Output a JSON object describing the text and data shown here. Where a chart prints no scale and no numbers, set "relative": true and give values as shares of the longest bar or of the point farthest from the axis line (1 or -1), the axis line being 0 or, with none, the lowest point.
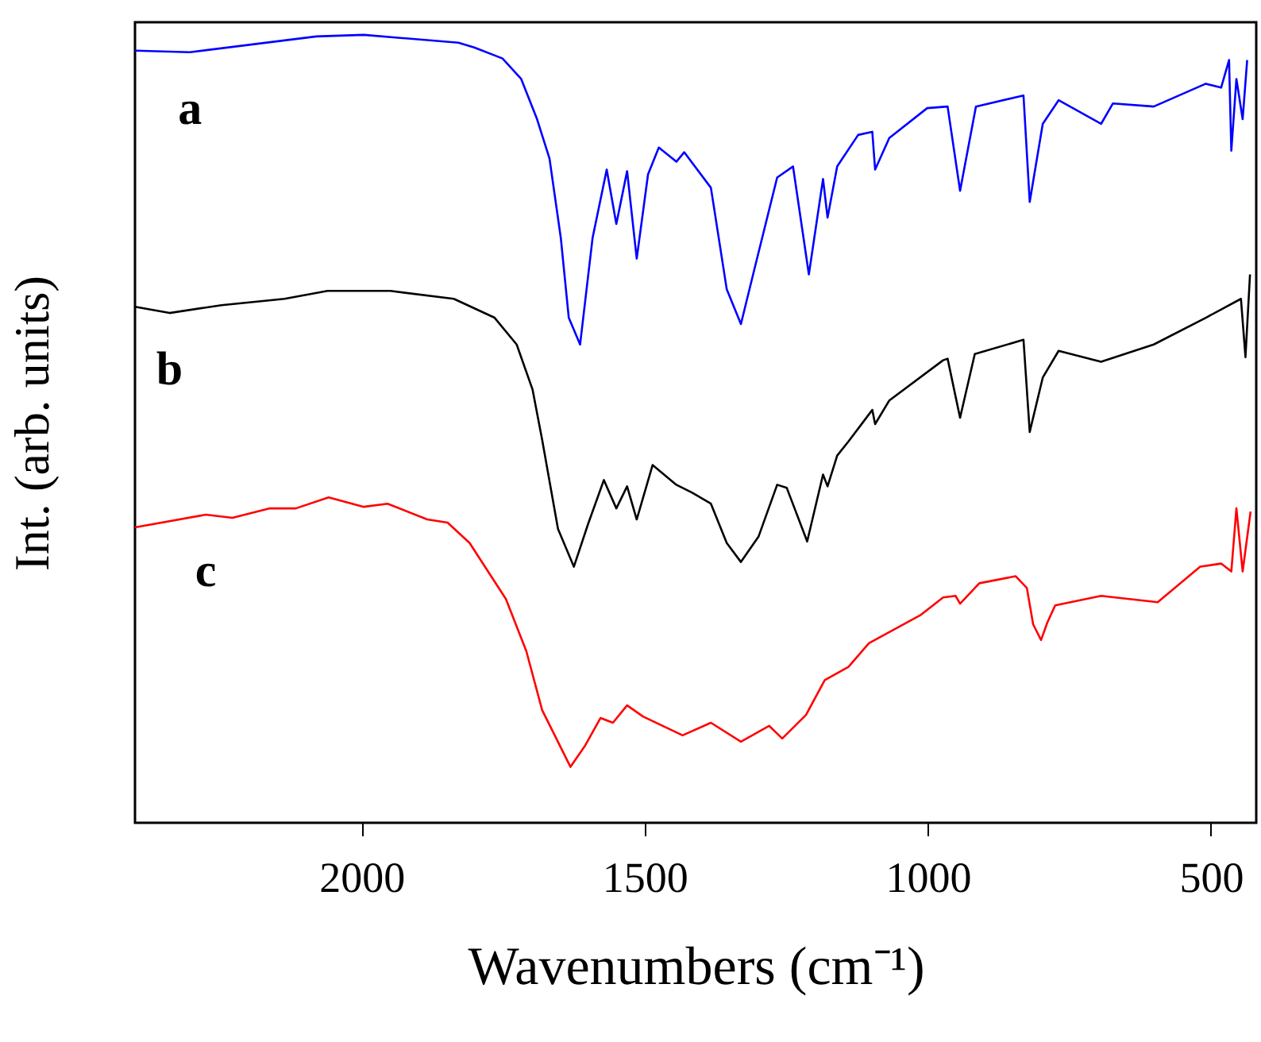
{
  "chart_data": {
    "type": "line",
    "relative": true,
    "xlabel": "Wavenumbers (cm⁻¹)",
    "ylabel": "Int. (arb. units)",
    "xlim": [
      2400,
      420
    ],
    "xticks": [
      2000,
      1500,
      1000,
      500
    ],
    "tick_labels": "x",
    "marker": "none",
    "line_style": "solid",
    "series": [
      {
        "name": "a",
        "color": "#0000ff",
        "x": [
          2400,
          2303,
          2080,
          1996,
          1829,
          1801,
          1751,
          1718,
          1690,
          1668,
          1648,
          1634,
          1614,
          1592,
          1567,
          1550,
          1531,
          1514,
          1494,
          1475,
          1444,
          1430,
          1383,
          1355,
          1330,
          1305,
          1266,
          1238,
          1210,
          1185,
          1177,
          1160,
          1123,
          1098,
          1093,
          1068,
          1001,
          965,
          943,
          915,
          831,
          820,
          797,
          769,
          694,
          673,
          601,
          509,
          482,
          468,
          464,
          455,
          444,
          436
        ],
        "values": [
          0.98,
          0.978,
          0.998,
          1.0,
          0.99,
          0.984,
          0.97,
          0.944,
          0.893,
          0.843,
          0.742,
          0.641,
          0.607,
          0.742,
          0.829,
          0.76,
          0.827,
          0.716,
          0.823,
          0.857,
          0.839,
          0.851,
          0.806,
          0.677,
          0.633,
          0.706,
          0.819,
          0.833,
          0.696,
          0.817,
          0.768,
          0.833,
          0.873,
          0.877,
          0.829,
          0.869,
          0.907,
          0.909,
          0.802,
          0.909,
          0.923,
          0.788,
          0.887,
          0.917,
          0.887,
          0.913,
          0.909,
          0.938,
          0.933,
          0.968,
          0.853,
          0.944,
          0.893,
          0.968
        ]
      },
      {
        "name": "b",
        "color": "#000000",
        "x": [
          2400,
          2339,
          2247,
          2136,
          2060,
          1949,
          1837,
          1765,
          1726,
          1698,
          1681,
          1653,
          1625,
          1600,
          1572,
          1550,
          1531,
          1514,
          1486,
          1444,
          1416,
          1383,
          1355,
          1330,
          1299,
          1266,
          1249,
          1213,
          1185,
          1177,
          1160,
          1140,
          1098,
          1093,
          1068,
          973,
          965,
          943,
          917,
          831,
          820,
          797,
          769,
          694,
          601,
          509,
          447,
          439,
          431
        ],
        "values": [
          0.655,
          0.647,
          0.657,
          0.665,
          0.675,
          0.675,
          0.665,
          0.641,
          0.607,
          0.55,
          0.486,
          0.373,
          0.325,
          0.379,
          0.435,
          0.399,
          0.427,
          0.385,
          0.454,
          0.429,
          0.419,
          0.405,
          0.355,
          0.331,
          0.363,
          0.429,
          0.425,
          0.357,
          0.442,
          0.427,
          0.466,
          0.484,
          0.524,
          0.506,
          0.536,
          0.587,
          0.589,
          0.514,
          0.595,
          0.613,
          0.496,
          0.565,
          0.599,
          0.585,
          0.607,
          0.641,
          0.665,
          0.591,
          0.696
        ]
      },
      {
        "name": "c",
        "color": "#ff0000",
        "x": [
          2400,
          2275,
          2228,
          2163,
          2116,
          2058,
          1996,
          1954,
          1884,
          1848,
          1809,
          1745,
          1709,
          1681,
          1631,
          1606,
          1578,
          1556,
          1531,
          1503,
          1433,
          1383,
          1330,
          1280,
          1257,
          1215,
          1182,
          1140,
          1104,
          1012,
          973,
          951,
          943,
          909,
          845,
          825,
          814,
          800,
          789,
          775,
          694,
          594,
          519,
          482,
          464,
          455,
          444,
          430
        ],
        "values": [
          0.375,
          0.391,
          0.387,
          0.399,
          0.399,
          0.413,
          0.401,
          0.405,
          0.385,
          0.381,
          0.355,
          0.284,
          0.218,
          0.143,
          0.071,
          0.097,
          0.133,
          0.127,
          0.149,
          0.135,
          0.111,
          0.127,
          0.103,
          0.123,
          0.107,
          0.137,
          0.181,
          0.198,
          0.228,
          0.264,
          0.286,
          0.288,
          0.278,
          0.304,
          0.313,
          0.298,
          0.252,
          0.232,
          0.254,
          0.276,
          0.288,
          0.28,
          0.325,
          0.329,
          0.319,
          0.399,
          0.319,
          0.395
        ]
      }
    ]
  }
}
